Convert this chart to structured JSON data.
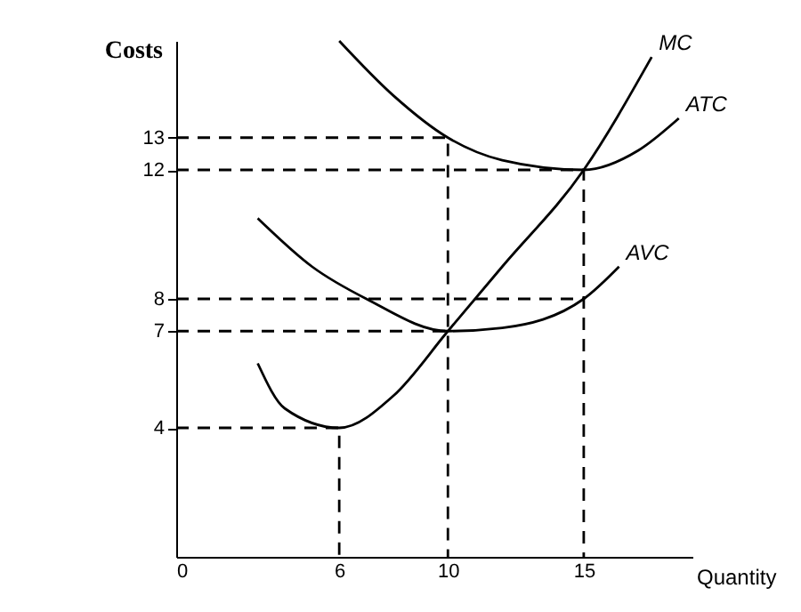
{
  "chart_data": {
    "type": "line",
    "ylabel": "Costs",
    "xlabel": "Quantity",
    "xlim": [
      0,
      19
    ],
    "ylim": [
      0,
      16
    ],
    "xticks": [
      0,
      6,
      10,
      15
    ],
    "yticks": [
      4,
      7,
      8,
      12,
      13
    ],
    "grid": false,
    "marker": "none",
    "series": [
      {
        "name": "MC",
        "color": "#000000",
        "x": [
          3,
          4,
          6,
          8,
          10,
          12,
          15,
          17.5
        ],
        "values": [
          6,
          4.6,
          4,
          5,
          7,
          9,
          12,
          15.5
        ]
      },
      {
        "name": "ATC",
        "color": "#000000",
        "x": [
          6,
          8,
          10,
          12,
          15,
          17,
          18.5
        ],
        "values": [
          16,
          14.3,
          13,
          12.3,
          12,
          12.6,
          13.6
        ]
      },
      {
        "name": "AVC",
        "color": "#000000",
        "x": [
          3,
          5,
          7,
          10,
          12,
          15,
          16.3
        ],
        "values": [
          10.5,
          9,
          8,
          7,
          7.1,
          8,
          9
        ]
      },
      {
        "color": "#000000",
        "line_style": "dashed",
        "x": [
          0,
          10,
          10
        ],
        "values": [
          13,
          13,
          0
        ]
      },
      {
        "color": "#000000",
        "line_style": "dashed",
        "x": [
          0,
          15,
          15
        ],
        "values": [
          12,
          12,
          0
        ]
      },
      {
        "color": "#000000",
        "line_style": "dashed",
        "x": [
          0,
          15
        ],
        "values": [
          8,
          8
        ]
      },
      {
        "color": "#000000",
        "line_style": "dashed",
        "x": [
          0,
          10
        ],
        "values": [
          7,
          7
        ]
      },
      {
        "color": "#000000",
        "line_style": "dashed",
        "x": [
          0,
          6,
          6
        ],
        "values": [
          4,
          4,
          0
        ]
      }
    ]
  }
}
